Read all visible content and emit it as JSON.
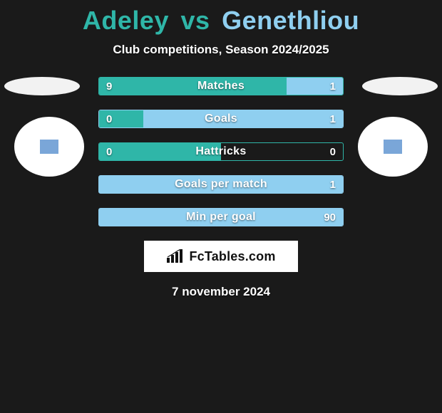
{
  "colors": {
    "background": "#1a1a1a",
    "title_left": "#2fb6a8",
    "title_right": "#8fcff0",
    "left_fill": "#2fb6a8",
    "right_fill": "#8fcff0",
    "bar_border_green": "#2fb6a8",
    "bar_border_blue": "#8fcff0",
    "white": "#ffffff"
  },
  "title": {
    "left": "Adeley",
    "vs": "vs",
    "right": "Genethliou"
  },
  "subtitle": "Club competitions, Season 2024/2025",
  "bars": [
    {
      "label": "Matches",
      "left": "9",
      "right": "1",
      "left_pct": 77,
      "right_pct": 23,
      "border": "green"
    },
    {
      "label": "Goals",
      "left": "0",
      "right": "1",
      "left_pct": 18,
      "right_pct": 82,
      "border": "blue"
    },
    {
      "label": "Hattricks",
      "left": "0",
      "right": "0",
      "left_pct": 50,
      "right_pct": 0,
      "border": "green"
    },
    {
      "label": "Goals per match",
      "left": "",
      "right": "1",
      "left_pct": 0,
      "right_pct": 100,
      "border": "blue"
    },
    {
      "label": "Min per goal",
      "left": "",
      "right": "90",
      "left_pct": 0,
      "right_pct": 100,
      "border": "blue"
    }
  ],
  "logo": {
    "text": "FcTables.com"
  },
  "date": "7 november 2024"
}
